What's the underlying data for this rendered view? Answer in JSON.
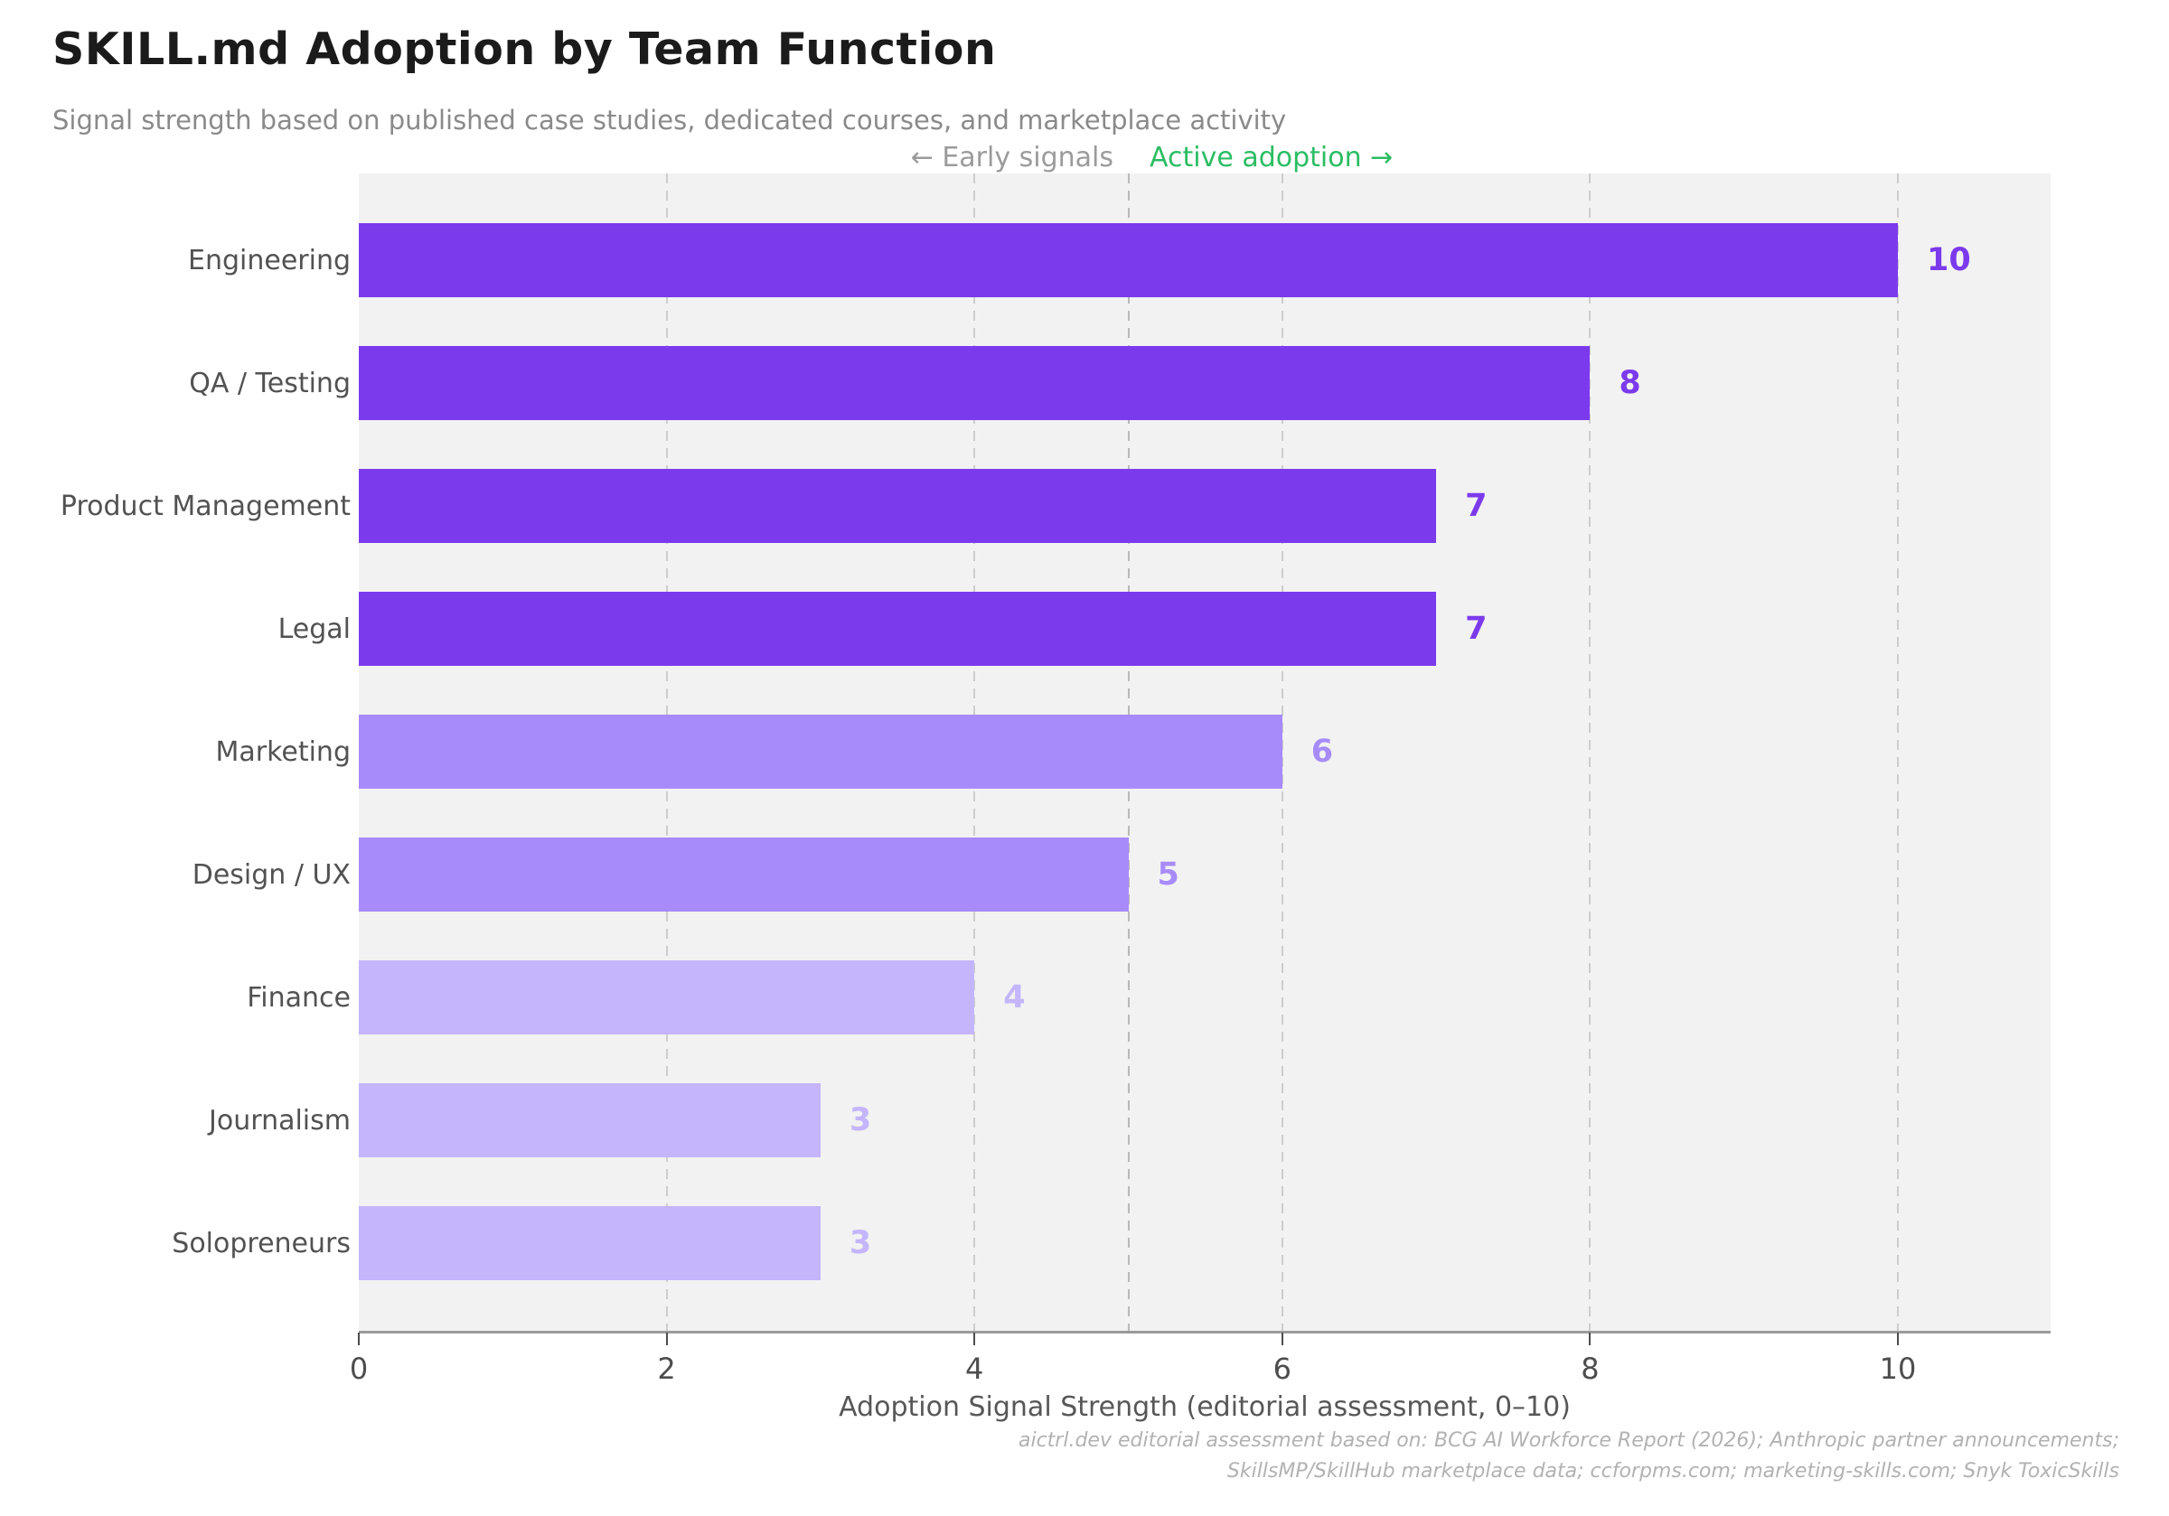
{
  "title": "SKILL.md Adoption by Team Function",
  "subtitle": "Signal strength based on published case studies, dedicated courses, and marketplace activity",
  "annotations": {
    "early_label": "← Early signals",
    "active_label": "Active adoption →",
    "early_color": "#9b9b9b",
    "active_color": "#2bbd63",
    "divider_value": 5
  },
  "chart_data": {
    "type": "bar",
    "orientation": "horizontal",
    "title": "SKILL.md Adoption by Team Function",
    "categories": [
      "Engineering",
      "QA / Testing",
      "Product Management",
      "Legal",
      "Marketing",
      "Design / UX",
      "Finance",
      "Journalism",
      "Solopreneurs"
    ],
    "values": [
      10,
      8,
      7,
      7,
      6,
      5,
      4,
      3,
      3
    ],
    "bar_colors": [
      "#7c3aed",
      "#7c3aed",
      "#7c3aed",
      "#7c3aed",
      "#a78bfa",
      "#a78bfa",
      "#c4b5fd",
      "#c4b5fd",
      "#c4b5fd"
    ],
    "value_label_colors": [
      "#7c3aed",
      "#7c3aed",
      "#7c3aed",
      "#7c3aed",
      "#a78bfa",
      "#a78bfa",
      "#c4b5fd",
      "#c4b5fd",
      "#c4b5fd"
    ],
    "xlabel": "Adoption Signal Strength (editorial assessment, 0–10)",
    "xlim": [
      0,
      11
    ],
    "xticks": [
      0,
      2,
      4,
      6,
      8,
      10
    ],
    "gridlines_at": [
      2,
      4,
      5,
      6,
      8,
      10
    ],
    "grid_style": "dashed",
    "plot_background": "#f2f2f2",
    "legend": null
  },
  "footer": {
    "line1": "aictrl.dev editorial assessment based on: BCG AI Workforce Report (2026); Anthropic partner announcements;",
    "line2": "SkillsMP/SkillHub marketplace data; ccforpms.com; marketing-skills.com; Snyk ToxicSkills"
  }
}
